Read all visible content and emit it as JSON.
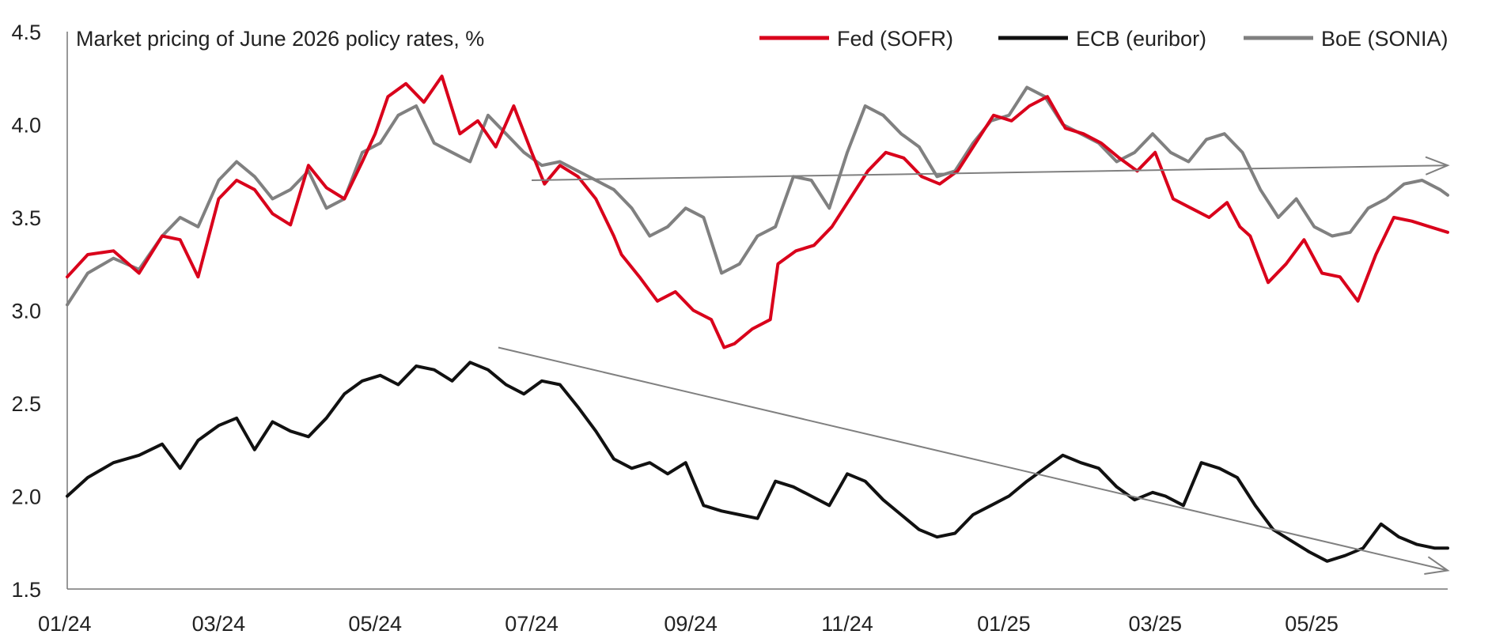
{
  "chart_data": {
    "type": "line",
    "title": "Market pricing of June 2026 policy rates, %",
    "xlabel": "",
    "ylabel": "",
    "ylim": [
      1.5,
      4.5
    ],
    "yticks": [
      1.5,
      2.0,
      2.5,
      3.0,
      3.5,
      4.0,
      4.5
    ],
    "ytick_labels": [
      "1.5",
      "2.0",
      "2.5",
      "3.0",
      "3.5",
      "4.0",
      "4.5"
    ],
    "xlim": [
      "2024-01-02",
      "2025-06-23"
    ],
    "xticks": [
      "2024-01-01",
      "2024-03-01",
      "2024-05-01",
      "2024-07-01",
      "2024-09-01",
      "2024-11-01",
      "2025-01-01",
      "2025-03-01",
      "2025-05-01"
    ],
    "xtick_labels": [
      "01/24",
      "03/24",
      "05/24",
      "07/24",
      "09/24",
      "11/24",
      "01/25",
      "03/25",
      "05/25"
    ],
    "grid": false,
    "legend": "top-right",
    "series": [
      {
        "name": "Fed (SOFR)",
        "color": "#d9001b",
        "x": [
          "2024-01-02",
          "2024-01-10",
          "2024-01-20",
          "2024-01-30",
          "2024-02-08",
          "2024-02-15",
          "2024-02-22",
          "2024-03-01",
          "2024-03-08",
          "2024-03-15",
          "2024-03-22",
          "2024-03-29",
          "2024-04-05",
          "2024-04-12",
          "2024-04-19",
          "2024-04-26",
          "2024-05-01",
          "2024-05-06",
          "2024-05-13",
          "2024-05-20",
          "2024-05-27",
          "2024-06-03",
          "2024-06-10",
          "2024-06-17",
          "2024-06-24",
          "2024-07-01",
          "2024-07-06",
          "2024-07-12",
          "2024-07-19",
          "2024-07-26",
          "2024-08-02",
          "2024-08-05",
          "2024-08-12",
          "2024-08-19",
          "2024-08-26",
          "2024-09-02",
          "2024-09-09",
          "2024-09-14",
          "2024-09-18",
          "2024-09-25",
          "2024-10-02",
          "2024-10-05",
          "2024-10-12",
          "2024-10-19",
          "2024-10-26",
          "2024-11-02",
          "2024-11-09",
          "2024-11-16",
          "2024-11-23",
          "2024-11-30",
          "2024-12-07",
          "2024-12-14",
          "2024-12-21",
          "2024-12-28",
          "2025-01-04",
          "2025-01-11",
          "2025-01-18",
          "2025-01-25",
          "2025-02-01",
          "2025-02-08",
          "2025-02-15",
          "2025-02-22",
          "2025-03-01",
          "2025-03-08",
          "2025-03-15",
          "2025-03-22",
          "2025-03-29",
          "2025-04-03",
          "2025-04-07",
          "2025-04-14",
          "2025-04-21",
          "2025-04-28",
          "2025-05-05",
          "2025-05-12",
          "2025-05-19",
          "2025-05-26",
          "2025-06-02",
          "2025-06-09",
          "2025-06-16",
          "2025-06-23"
        ],
        "values": [
          3.18,
          3.3,
          3.32,
          3.2,
          3.4,
          3.38,
          3.18,
          3.6,
          3.7,
          3.65,
          3.52,
          3.46,
          3.78,
          3.66,
          3.6,
          3.8,
          3.95,
          4.15,
          4.22,
          4.12,
          4.26,
          3.95,
          4.02,
          3.88,
          4.1,
          3.85,
          3.68,
          3.78,
          3.72,
          3.6,
          3.4,
          3.3,
          3.18,
          3.05,
          3.1,
          3.0,
          2.95,
          2.8,
          2.82,
          2.9,
          2.95,
          3.25,
          3.32,
          3.35,
          3.45,
          3.6,
          3.75,
          3.85,
          3.82,
          3.72,
          3.68,
          3.75,
          3.9,
          4.05,
          4.02,
          4.1,
          4.15,
          3.98,
          3.95,
          3.9,
          3.82,
          3.75,
          3.85,
          3.6,
          3.55,
          3.5,
          3.58,
          3.45,
          3.4,
          3.15,
          3.25,
          3.38,
          3.2,
          3.18,
          3.05,
          3.3,
          3.5,
          3.48,
          3.45,
          3.42
        ]
      },
      {
        "name": "ECB (euribor)",
        "color": "#111111",
        "x": [
          "2024-01-02",
          "2024-01-10",
          "2024-01-20",
          "2024-01-30",
          "2024-02-08",
          "2024-02-15",
          "2024-02-22",
          "2024-03-01",
          "2024-03-08",
          "2024-03-15",
          "2024-03-22",
          "2024-03-29",
          "2024-04-05",
          "2024-04-12",
          "2024-04-19",
          "2024-04-26",
          "2024-05-03",
          "2024-05-10",
          "2024-05-17",
          "2024-05-24",
          "2024-05-31",
          "2024-06-07",
          "2024-06-14",
          "2024-06-21",
          "2024-06-28",
          "2024-07-05",
          "2024-07-12",
          "2024-07-19",
          "2024-07-26",
          "2024-08-02",
          "2024-08-09",
          "2024-08-16",
          "2024-08-23",
          "2024-08-30",
          "2024-09-06",
          "2024-09-13",
          "2024-09-20",
          "2024-09-27",
          "2024-10-04",
          "2024-10-11",
          "2024-10-18",
          "2024-10-25",
          "2024-11-01",
          "2024-11-08",
          "2024-11-15",
          "2024-11-22",
          "2024-11-29",
          "2024-12-06",
          "2024-12-13",
          "2024-12-20",
          "2024-12-27",
          "2025-01-03",
          "2025-01-10",
          "2025-01-17",
          "2025-01-24",
          "2025-01-31",
          "2025-02-07",
          "2025-02-14",
          "2025-02-21",
          "2025-02-28",
          "2025-03-05",
          "2025-03-12",
          "2025-03-19",
          "2025-03-26",
          "2025-04-02",
          "2025-04-09",
          "2025-04-16",
          "2025-04-23",
          "2025-04-30",
          "2025-05-07",
          "2025-05-14",
          "2025-05-21",
          "2025-05-28",
          "2025-06-04",
          "2025-06-11",
          "2025-06-18",
          "2025-06-23"
        ],
        "values": [
          2.0,
          2.1,
          2.18,
          2.22,
          2.28,
          2.15,
          2.3,
          2.38,
          2.42,
          2.25,
          2.4,
          2.35,
          2.32,
          2.42,
          2.55,
          2.62,
          2.65,
          2.6,
          2.7,
          2.68,
          2.62,
          2.72,
          2.68,
          2.6,
          2.55,
          2.62,
          2.6,
          2.48,
          2.35,
          2.2,
          2.15,
          2.18,
          2.12,
          2.18,
          1.95,
          1.92,
          1.9,
          1.88,
          2.08,
          2.05,
          2.0,
          1.95,
          2.12,
          2.08,
          1.98,
          1.9,
          1.82,
          1.78,
          1.8,
          1.9,
          1.95,
          2.0,
          2.08,
          2.15,
          2.22,
          2.18,
          2.15,
          2.05,
          1.98,
          2.02,
          2.0,
          1.95,
          2.18,
          2.15,
          2.1,
          1.95,
          1.82,
          1.76,
          1.7,
          1.65,
          1.68,
          1.72,
          1.85,
          1.78,
          1.74,
          1.72,
          1.72
        ]
      },
      {
        "name": "BoE (SONIA)",
        "color": "#808080",
        "x": [
          "2024-01-02",
          "2024-01-10",
          "2024-01-20",
          "2024-01-30",
          "2024-02-08",
          "2024-02-15",
          "2024-02-22",
          "2024-03-01",
          "2024-03-08",
          "2024-03-15",
          "2024-03-22",
          "2024-03-29",
          "2024-04-05",
          "2024-04-12",
          "2024-04-19",
          "2024-04-26",
          "2024-05-03",
          "2024-05-10",
          "2024-05-17",
          "2024-05-24",
          "2024-05-31",
          "2024-06-07",
          "2024-06-14",
          "2024-06-21",
          "2024-06-28",
          "2024-07-05",
          "2024-07-12",
          "2024-07-19",
          "2024-07-26",
          "2024-08-02",
          "2024-08-09",
          "2024-08-16",
          "2024-08-23",
          "2024-08-30",
          "2024-09-06",
          "2024-09-13",
          "2024-09-20",
          "2024-09-27",
          "2024-10-04",
          "2024-10-11",
          "2024-10-18",
          "2024-10-25",
          "2024-11-01",
          "2024-11-08",
          "2024-11-15",
          "2024-11-22",
          "2024-11-29",
          "2024-12-06",
          "2024-12-13",
          "2024-12-20",
          "2024-12-27",
          "2025-01-03",
          "2025-01-10",
          "2025-01-17",
          "2025-01-24",
          "2025-01-31",
          "2025-02-07",
          "2025-02-14",
          "2025-02-21",
          "2025-02-28",
          "2025-03-07",
          "2025-03-14",
          "2025-03-21",
          "2025-03-28",
          "2025-04-04",
          "2025-04-11",
          "2025-04-18",
          "2025-04-25",
          "2025-05-02",
          "2025-05-09",
          "2025-05-16",
          "2025-05-23",
          "2025-05-30",
          "2025-06-06",
          "2025-06-13",
          "2025-06-20",
          "2025-06-23"
        ],
        "values": [
          3.03,
          3.2,
          3.28,
          3.22,
          3.4,
          3.5,
          3.45,
          3.7,
          3.8,
          3.72,
          3.6,
          3.65,
          3.75,
          3.55,
          3.6,
          3.85,
          3.9,
          4.05,
          4.1,
          3.9,
          3.85,
          3.8,
          4.05,
          3.95,
          3.85,
          3.78,
          3.8,
          3.75,
          3.7,
          3.65,
          3.55,
          3.4,
          3.45,
          3.55,
          3.5,
          3.2,
          3.25,
          3.4,
          3.45,
          3.72,
          3.7,
          3.55,
          3.85,
          4.1,
          4.05,
          3.95,
          3.88,
          3.72,
          3.75,
          3.9,
          4.02,
          4.05,
          4.2,
          4.15,
          4.0,
          3.95,
          3.9,
          3.8,
          3.85,
          3.95,
          3.85,
          3.8,
          3.92,
          3.95,
          3.85,
          3.65,
          3.5,
          3.6,
          3.45,
          3.4,
          3.42,
          3.55,
          3.6,
          3.68,
          3.7,
          3.65,
          3.62
        ]
      }
    ],
    "annotations": [
      {
        "type": "trend-arrow",
        "from": [
          "2024-07-01",
          3.7
        ],
        "to": [
          "2025-06-23",
          3.78
        ],
        "color": "#808080"
      },
      {
        "type": "trend-arrow",
        "from": [
          "2024-06-18",
          2.8
        ],
        "to": [
          "2025-06-23",
          1.6
        ],
        "color": "#808080"
      }
    ]
  }
}
